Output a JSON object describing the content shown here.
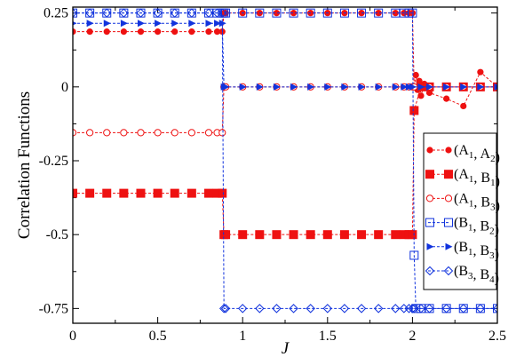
{
  "chart_data": {
    "type": "line",
    "xlabel": "J",
    "ylabel": "Correlation Functions",
    "xlim": [
      0,
      2.5
    ],
    "ylim": [
      -0.8,
      0.27
    ],
    "xticks": [
      0,
      0.5,
      1,
      1.5,
      2,
      2.5
    ],
    "xtick_labels": [
      "0",
      "0.5",
      "1",
      "1.5",
      "2",
      "2.5"
    ],
    "yticks": [
      0.25,
      0,
      -0.25,
      -0.5,
      -0.75
    ],
    "ytick_labels": [
      "0.25",
      "0",
      "-0.25",
      "-0.5",
      "-0.75"
    ],
    "legend_position": "right",
    "series": [
      {
        "name": "(A1, A2)",
        "color": "#ee1111",
        "marker": "filled-circle",
        "line": "dashed",
        "x": [
          0,
          0.1,
          0.2,
          0.3,
          0.4,
          0.5,
          0.6,
          0.7,
          0.8,
          0.85,
          0.88,
          0.89,
          0.9,
          1.0,
          1.1,
          1.2,
          1.3,
          1.4,
          1.5,
          1.6,
          1.7,
          1.8,
          1.9,
          1.95,
          1.98,
          2.0,
          2.01,
          2.02,
          2.03,
          2.04,
          2.05,
          2.07,
          2.1,
          2.2,
          2.3,
          2.4,
          2.5
        ],
        "y": [
          0.187,
          0.187,
          0.187,
          0.187,
          0.187,
          0.187,
          0.187,
          0.187,
          0.187,
          0.187,
          0.187,
          0.25,
          0.25,
          0.25,
          0.25,
          0.25,
          0.25,
          0.25,
          0.25,
          0.25,
          0.25,
          0.25,
          0.25,
          0.25,
          0.25,
          0.25,
          0.0,
          0.04,
          -0.01,
          0.02,
          -0.03,
          0.01,
          -0.02,
          -0.04,
          -0.065,
          0.05,
          0.0
        ]
      },
      {
        "name": "(A1, B1)",
        "color": "#ee1111",
        "marker": "filled-square",
        "line": "dashed",
        "x": [
          0,
          0.1,
          0.2,
          0.3,
          0.4,
          0.5,
          0.6,
          0.7,
          0.8,
          0.85,
          0.88,
          0.89,
          0.9,
          1.0,
          1.1,
          1.2,
          1.3,
          1.4,
          1.5,
          1.6,
          1.7,
          1.8,
          1.9,
          1.95,
          1.98,
          2.0,
          2.01,
          2.05,
          2.1,
          2.2,
          2.3,
          2.4,
          2.5
        ],
        "y": [
          -0.36,
          -0.36,
          -0.36,
          -0.36,
          -0.36,
          -0.36,
          -0.36,
          -0.36,
          -0.36,
          -0.36,
          -0.36,
          -0.5,
          -0.5,
          -0.5,
          -0.5,
          -0.5,
          -0.5,
          -0.5,
          -0.5,
          -0.5,
          -0.5,
          -0.5,
          -0.5,
          -0.5,
          -0.5,
          -0.5,
          -0.08,
          0.0,
          0.0,
          0.0,
          0.0,
          0.0,
          0.0
        ]
      },
      {
        "name": "(A1, B3)",
        "color": "#ee1111",
        "marker": "open-circle",
        "line": "dashed",
        "x": [
          0,
          0.1,
          0.2,
          0.3,
          0.4,
          0.5,
          0.6,
          0.7,
          0.8,
          0.85,
          0.88,
          0.89,
          0.9,
          1.0,
          1.1,
          1.2,
          1.3,
          1.4,
          1.5,
          1.6,
          1.7,
          1.8,
          1.9,
          1.95,
          1.98,
          2.0,
          2.01,
          2.1,
          2.2,
          2.3,
          2.4,
          2.5
        ],
        "y": [
          -0.155,
          -0.155,
          -0.155,
          -0.155,
          -0.155,
          -0.155,
          -0.155,
          -0.155,
          -0.155,
          -0.155,
          -0.155,
          0.0,
          0.0,
          0.0,
          0.0,
          0.0,
          0.0,
          0.0,
          0.0,
          0.0,
          0.0,
          0.0,
          0.0,
          0.0,
          0.0,
          0.0,
          0.0,
          0.0,
          0.0,
          0.0,
          0.0,
          0.0
        ]
      },
      {
        "name": "(B1, B2)",
        "color": "#1133dd",
        "marker": "open-square",
        "line": "dashed",
        "x": [
          0,
          0.1,
          0.2,
          0.3,
          0.4,
          0.5,
          0.6,
          0.7,
          0.8,
          0.85,
          0.88,
          0.89,
          0.9,
          1.0,
          1.1,
          1.2,
          1.3,
          1.4,
          1.5,
          1.6,
          1.7,
          1.8,
          1.9,
          1.95,
          1.98,
          2.0,
          2.01,
          2.02,
          2.05,
          2.1,
          2.2,
          2.3,
          2.4,
          2.5
        ],
        "y": [
          0.25,
          0.25,
          0.25,
          0.25,
          0.25,
          0.25,
          0.25,
          0.25,
          0.25,
          0.25,
          0.25,
          0.25,
          0.25,
          0.25,
          0.25,
          0.25,
          0.25,
          0.25,
          0.25,
          0.25,
          0.25,
          0.25,
          0.25,
          0.25,
          0.25,
          0.25,
          -0.57,
          -0.75,
          -0.75,
          -0.75,
          -0.75,
          -0.75,
          -0.75,
          -0.75
        ]
      },
      {
        "name": "(B1, B3)",
        "color": "#1133dd",
        "marker": "filled-triangle-right",
        "line": "dashed",
        "x": [
          0,
          0.1,
          0.2,
          0.3,
          0.4,
          0.5,
          0.6,
          0.7,
          0.8,
          0.85,
          0.88,
          0.89,
          0.9,
          1.0,
          1.1,
          1.2,
          1.3,
          1.4,
          1.5,
          1.6,
          1.7,
          1.8,
          1.9,
          1.95,
          1.98,
          2.0,
          2.05,
          2.1,
          2.2,
          2.3,
          2.4,
          2.5
        ],
        "y": [
          0.215,
          0.215,
          0.215,
          0.215,
          0.215,
          0.215,
          0.215,
          0.215,
          0.215,
          0.215,
          0.215,
          0.0,
          0.0,
          0.0,
          0.0,
          0.0,
          0.0,
          0.0,
          0.0,
          0.0,
          0.0,
          0.0,
          0.0,
          0.0,
          0.0,
          0.0,
          0.0,
          0.0,
          0.0,
          0.0,
          0.0,
          0.0
        ]
      },
      {
        "name": "(B3, B4)",
        "color": "#1133dd",
        "marker": "open-diamond",
        "line": "dashed",
        "x": [
          0,
          0.1,
          0.2,
          0.3,
          0.4,
          0.5,
          0.6,
          0.7,
          0.8,
          0.85,
          0.88,
          0.89,
          0.9,
          1.0,
          1.1,
          1.2,
          1.3,
          1.4,
          1.5,
          1.6,
          1.7,
          1.8,
          1.9,
          1.95,
          1.98,
          2.0,
          2.01,
          2.05,
          2.1,
          2.2,
          2.3,
          2.4,
          2.5
        ],
        "y": [
          0.25,
          0.25,
          0.25,
          0.25,
          0.25,
          0.25,
          0.25,
          0.25,
          0.25,
          0.25,
          0.25,
          -0.75,
          -0.75,
          -0.75,
          -0.75,
          -0.75,
          -0.75,
          -0.75,
          -0.75,
          -0.75,
          -0.75,
          -0.75,
          -0.75,
          -0.75,
          -0.75,
          -0.75,
          -0.75,
          -0.75,
          -0.75,
          -0.75,
          -0.75,
          -0.75,
          -0.75
        ]
      }
    ]
  }
}
